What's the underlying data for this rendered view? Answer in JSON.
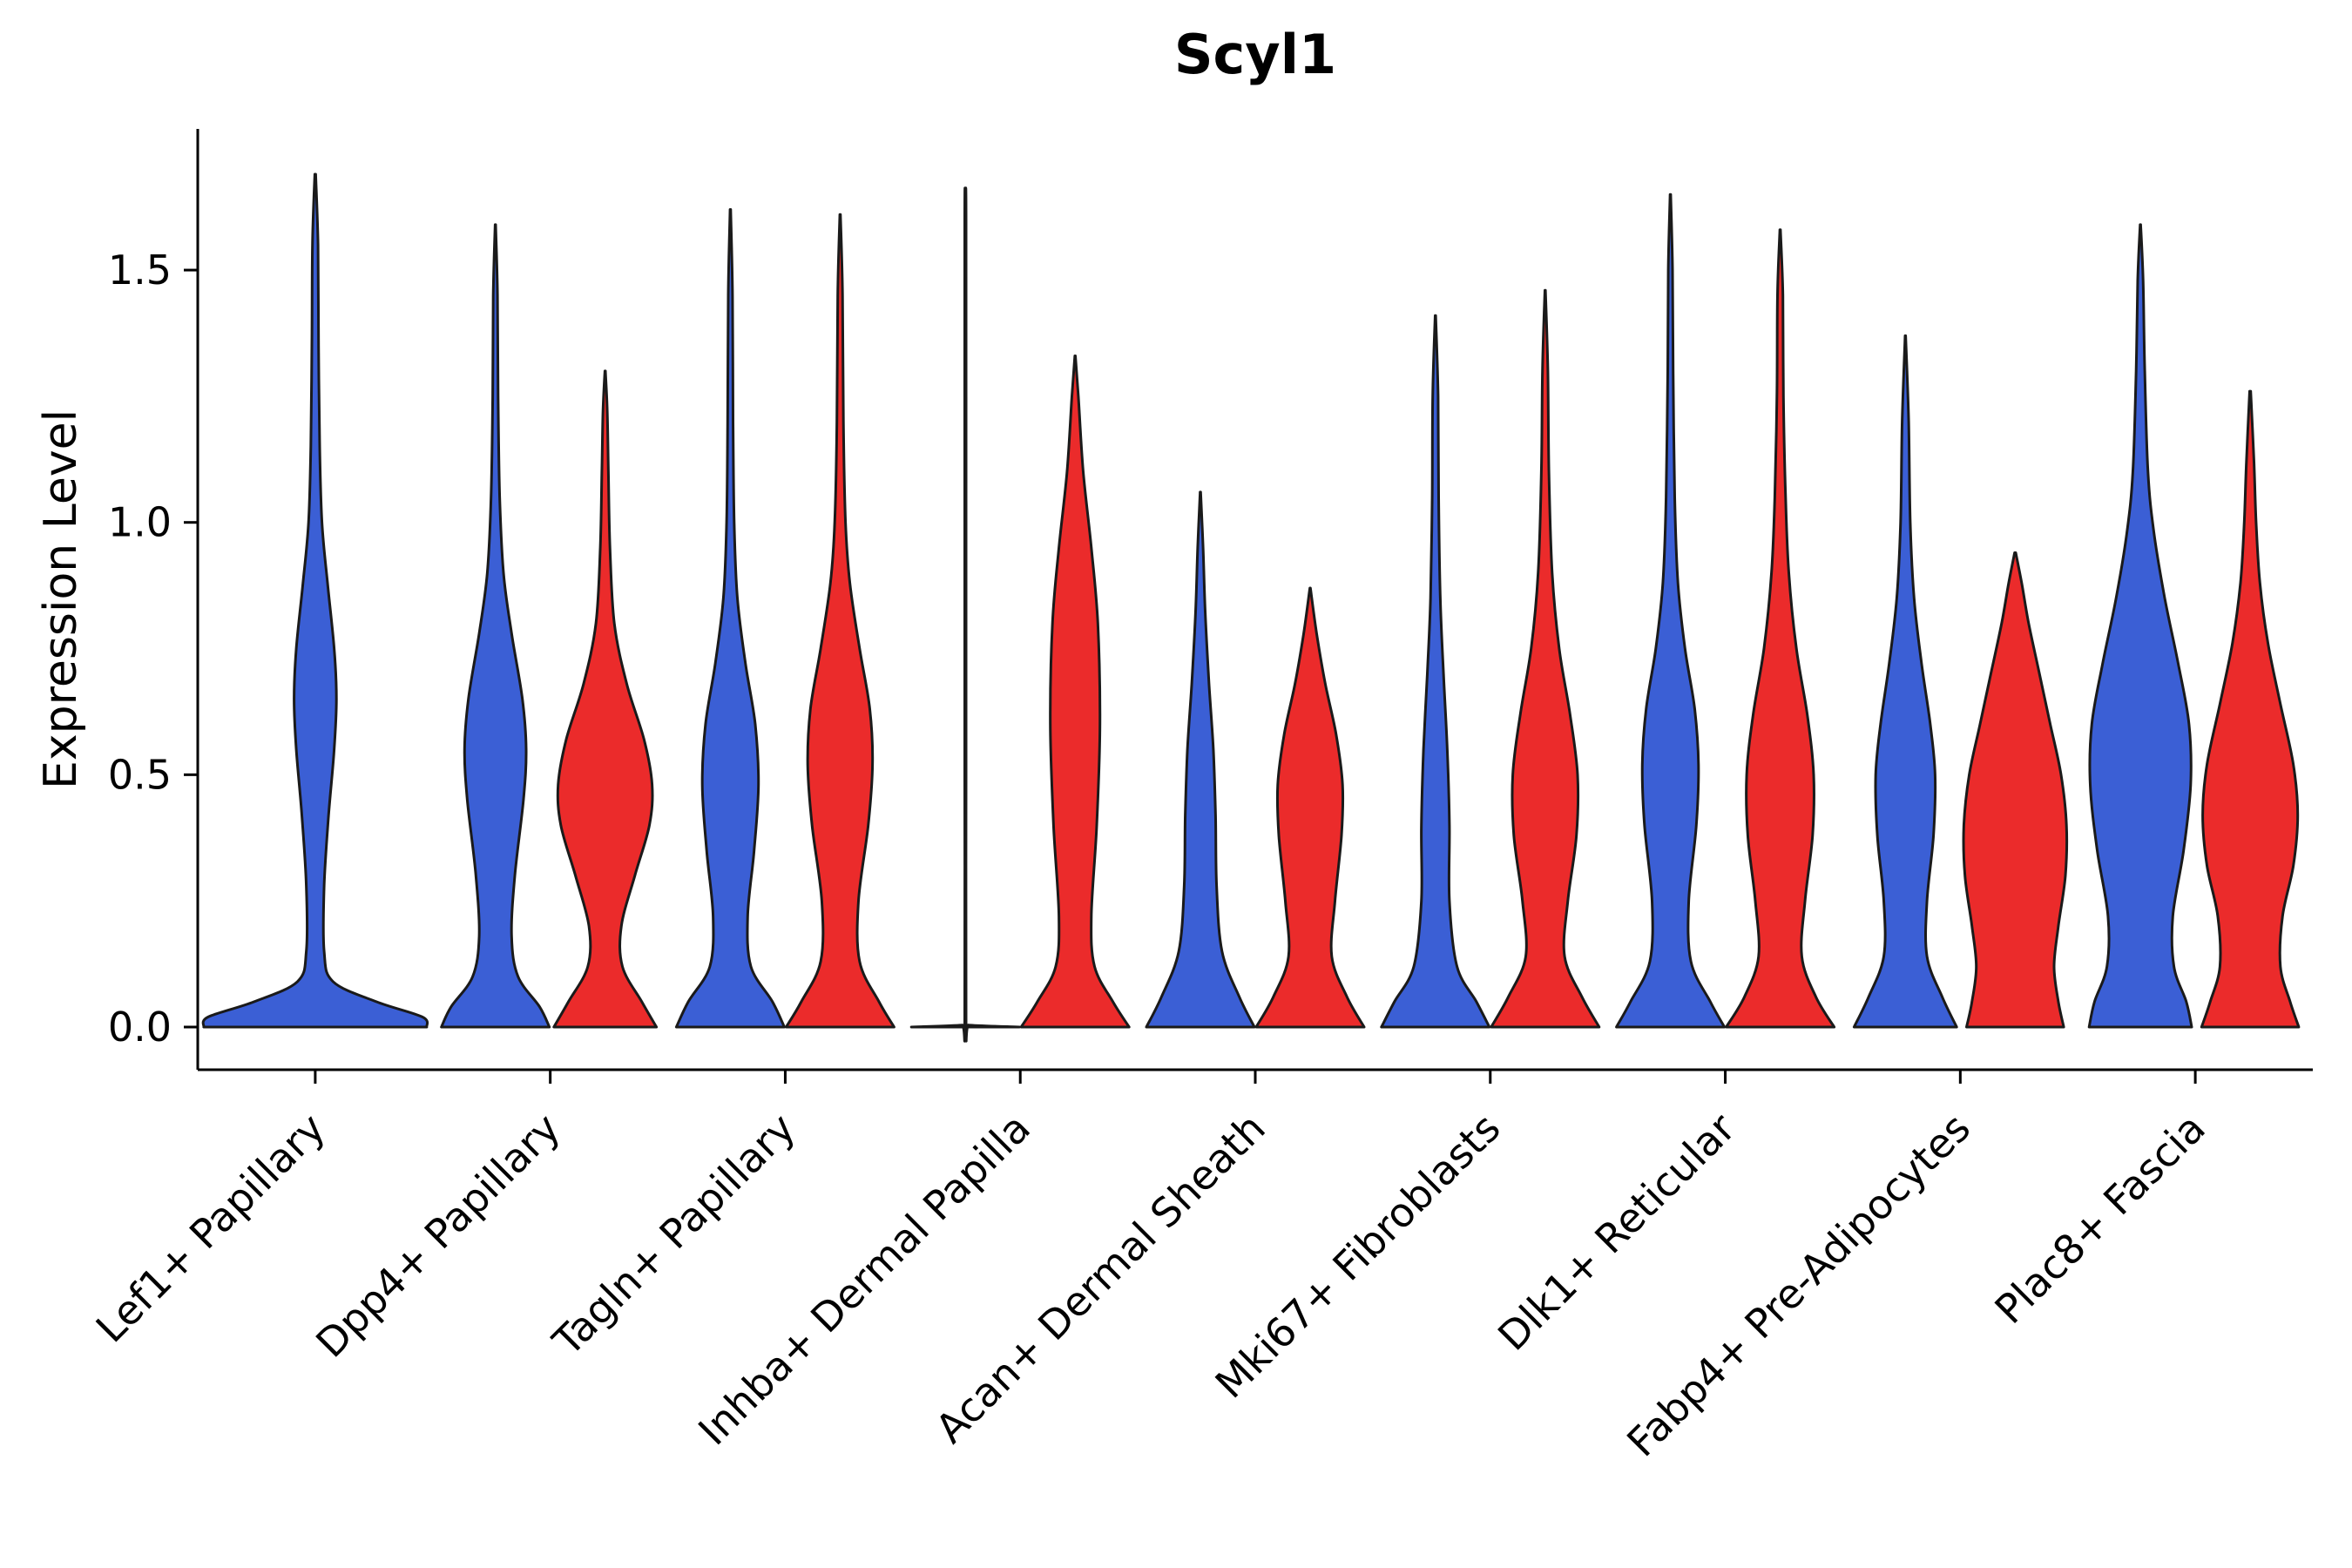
{
  "chart_data": {
    "type": "violin",
    "title": "Scyl1",
    "ylabel": "Expression Level",
    "xlabel": "",
    "ylim": [
      -0.085,
      1.78
    ],
    "ytick_labels": [
      "0.0",
      "0.5",
      "1.0",
      "1.5"
    ],
    "ytick_values": [
      0.0,
      0.5,
      1.0,
      1.5
    ],
    "x_tick_label_rotation_deg": 45,
    "legend": "none",
    "grid": false,
    "categories": [
      "Lef1+ Papillary",
      "Dpp4+ Papillary",
      "Tagln+ Papillary",
      "Inhba+ Dermal Papilla",
      "Acan+ Dermal Sheath",
      "Mki67+ Fibroblasts",
      "Dlk1+ Reticular",
      "Fabp4+ Pre-Adipocytes",
      "Plac8+ Fascia"
    ],
    "colors": {
      "blue": "#3B5FD5",
      "red": "#EB2B2B",
      "outline": "#1a1a1a",
      "axis": "#000000"
    },
    "violins": [
      {
        "category_index": 0,
        "category": "Lef1+ Papillary",
        "group": "blue",
        "side": "center",
        "max_expression": 1.69,
        "profile": [
          [
            0,
            1.0
          ],
          [
            0.02,
            0.96
          ],
          [
            0.05,
            0.55
          ],
          [
            0.09,
            0.16
          ],
          [
            0.15,
            0.08
          ],
          [
            0.28,
            0.08
          ],
          [
            0.42,
            0.12
          ],
          [
            0.55,
            0.17
          ],
          [
            0.65,
            0.19
          ],
          [
            0.75,
            0.17
          ],
          [
            0.88,
            0.11
          ],
          [
            1.0,
            0.06
          ],
          [
            1.15,
            0.04
          ],
          [
            1.35,
            0.03
          ],
          [
            1.55,
            0.025
          ],
          [
            1.69,
            0.004
          ]
        ]
      },
      {
        "category_index": 1,
        "category": "Dpp4+ Papillary",
        "group": "blue",
        "side": "left",
        "max_expression": 1.59,
        "profile": [
          [
            0,
            1.0
          ],
          [
            0.04,
            0.82
          ],
          [
            0.1,
            0.42
          ],
          [
            0.18,
            0.3
          ],
          [
            0.3,
            0.36
          ],
          [
            0.45,
            0.52
          ],
          [
            0.55,
            0.57
          ],
          [
            0.65,
            0.5
          ],
          [
            0.78,
            0.3
          ],
          [
            0.9,
            0.15
          ],
          [
            1.05,
            0.08
          ],
          [
            1.25,
            0.05
          ],
          [
            1.45,
            0.04
          ],
          [
            1.59,
            0.005
          ]
        ]
      },
      {
        "category_index": 1,
        "category": "Dpp4+ Papillary",
        "group": "red",
        "side": "right",
        "max_expression": 1.3,
        "profile": [
          [
            0,
            0.95
          ],
          [
            0.05,
            0.68
          ],
          [
            0.12,
            0.32
          ],
          [
            0.2,
            0.3
          ],
          [
            0.3,
            0.55
          ],
          [
            0.4,
            0.82
          ],
          [
            0.48,
            0.87
          ],
          [
            0.57,
            0.72
          ],
          [
            0.68,
            0.4
          ],
          [
            0.8,
            0.17
          ],
          [
            0.95,
            0.09
          ],
          [
            1.1,
            0.06
          ],
          [
            1.22,
            0.04
          ],
          [
            1.3,
            0.005
          ]
        ]
      },
      {
        "category_index": 2,
        "category": "Tagln+ Papillary",
        "group": "blue",
        "side": "left",
        "max_expression": 1.62,
        "profile": [
          [
            0,
            1.0
          ],
          [
            0.05,
            0.78
          ],
          [
            0.12,
            0.38
          ],
          [
            0.22,
            0.32
          ],
          [
            0.35,
            0.44
          ],
          [
            0.48,
            0.52
          ],
          [
            0.6,
            0.46
          ],
          [
            0.72,
            0.28
          ],
          [
            0.85,
            0.13
          ],
          [
            1.0,
            0.07
          ],
          [
            1.2,
            0.05
          ],
          [
            1.45,
            0.04
          ],
          [
            1.62,
            0.005
          ]
        ]
      },
      {
        "category_index": 2,
        "category": "Tagln+ Papillary",
        "group": "red",
        "side": "right",
        "max_expression": 1.61,
        "profile": [
          [
            0,
            1.0
          ],
          [
            0.05,
            0.72
          ],
          [
            0.13,
            0.36
          ],
          [
            0.25,
            0.34
          ],
          [
            0.4,
            0.52
          ],
          [
            0.52,
            0.6
          ],
          [
            0.63,
            0.55
          ],
          [
            0.75,
            0.36
          ],
          [
            0.88,
            0.18
          ],
          [
            1.0,
            0.1
          ],
          [
            1.2,
            0.06
          ],
          [
            1.45,
            0.045
          ],
          [
            1.61,
            0.005
          ]
        ]
      },
      {
        "category_index": 3,
        "category": "Inhba+ Dermal Papilla",
        "group": "blue",
        "side": "left",
        "max_expression": 1.65,
        "profile": [
          [
            0,
            1.0
          ],
          [
            0.004,
            0.06
          ],
          [
            0.01,
            0.012
          ],
          [
            0.5,
            0.012
          ],
          [
            1.0,
            0.012
          ],
          [
            1.6,
            0.012
          ],
          [
            1.65,
            0.003
          ]
        ]
      },
      {
        "category_index": 3,
        "category": "Inhba+ Dermal Papilla",
        "group": "red",
        "side": "right",
        "max_expression": 1.33,
        "profile": [
          [
            0,
            1.0
          ],
          [
            0.05,
            0.7
          ],
          [
            0.12,
            0.36
          ],
          [
            0.22,
            0.3
          ],
          [
            0.4,
            0.4
          ],
          [
            0.6,
            0.46
          ],
          [
            0.8,
            0.42
          ],
          [
            0.95,
            0.3
          ],
          [
            1.1,
            0.15
          ],
          [
            1.25,
            0.06
          ],
          [
            1.33,
            0.005
          ]
        ]
      },
      {
        "category_index": 4,
        "category": "Acan+ Dermal Sheath",
        "group": "blue",
        "side": "left",
        "max_expression": 1.06,
        "profile": [
          [
            0,
            1.0
          ],
          [
            0.06,
            0.72
          ],
          [
            0.15,
            0.4
          ],
          [
            0.28,
            0.3
          ],
          [
            0.42,
            0.28
          ],
          [
            0.55,
            0.24
          ],
          [
            0.68,
            0.16
          ],
          [
            0.82,
            0.09
          ],
          [
            0.95,
            0.05
          ],
          [
            1.06,
            0.005
          ]
        ]
      },
      {
        "category_index": 4,
        "category": "Acan+ Dermal Sheath",
        "group": "red",
        "side": "right",
        "max_expression": 0.87,
        "profile": [
          [
            0,
            1.0
          ],
          [
            0.06,
            0.68
          ],
          [
            0.14,
            0.4
          ],
          [
            0.25,
            0.46
          ],
          [
            0.38,
            0.58
          ],
          [
            0.48,
            0.6
          ],
          [
            0.58,
            0.48
          ],
          [
            0.68,
            0.28
          ],
          [
            0.78,
            0.12
          ],
          [
            0.87,
            0.005
          ]
        ]
      },
      {
        "category_index": 5,
        "category": "Mki67+ Fibroblasts",
        "group": "blue",
        "side": "left",
        "max_expression": 1.41,
        "profile": [
          [
            0,
            1.0
          ],
          [
            0.05,
            0.76
          ],
          [
            0.12,
            0.4
          ],
          [
            0.25,
            0.26
          ],
          [
            0.4,
            0.26
          ],
          [
            0.55,
            0.22
          ],
          [
            0.7,
            0.15
          ],
          [
            0.85,
            0.09
          ],
          [
            1.05,
            0.06
          ],
          [
            1.25,
            0.05
          ],
          [
            1.41,
            0.005
          ]
        ]
      },
      {
        "category_index": 5,
        "category": "Mki67+ Fibroblasts",
        "group": "red",
        "side": "right",
        "max_expression": 1.46,
        "profile": [
          [
            0,
            1.0
          ],
          [
            0.06,
            0.68
          ],
          [
            0.14,
            0.36
          ],
          [
            0.25,
            0.42
          ],
          [
            0.38,
            0.58
          ],
          [
            0.5,
            0.6
          ],
          [
            0.62,
            0.46
          ],
          [
            0.75,
            0.26
          ],
          [
            0.9,
            0.13
          ],
          [
            1.1,
            0.07
          ],
          [
            1.3,
            0.05
          ],
          [
            1.46,
            0.005
          ]
        ]
      },
      {
        "category_index": 6,
        "category": "Dlk1+ Reticular",
        "group": "blue",
        "side": "left",
        "max_expression": 1.65,
        "profile": [
          [
            0,
            1.0
          ],
          [
            0.05,
            0.74
          ],
          [
            0.13,
            0.38
          ],
          [
            0.25,
            0.34
          ],
          [
            0.4,
            0.48
          ],
          [
            0.52,
            0.52
          ],
          [
            0.63,
            0.45
          ],
          [
            0.75,
            0.27
          ],
          [
            0.88,
            0.14
          ],
          [
            1.05,
            0.08
          ],
          [
            1.3,
            0.05
          ],
          [
            1.5,
            0.04
          ],
          [
            1.65,
            0.005
          ]
        ]
      },
      {
        "category_index": 6,
        "category": "Dlk1+ Reticular",
        "group": "red",
        "side": "right",
        "max_expression": 1.58,
        "profile": [
          [
            0,
            1.0
          ],
          [
            0.06,
            0.66
          ],
          [
            0.14,
            0.4
          ],
          [
            0.25,
            0.46
          ],
          [
            0.38,
            0.6
          ],
          [
            0.5,
            0.62
          ],
          [
            0.62,
            0.5
          ],
          [
            0.75,
            0.3
          ],
          [
            0.9,
            0.16
          ],
          [
            1.05,
            0.1
          ],
          [
            1.25,
            0.06
          ],
          [
            1.45,
            0.05
          ],
          [
            1.58,
            0.005
          ]
        ]
      },
      {
        "category_index": 7,
        "category": "Fabp4+ Pre-Adipocytes",
        "group": "blue",
        "side": "left",
        "max_expression": 1.37,
        "profile": [
          [
            0,
            0.95
          ],
          [
            0.06,
            0.68
          ],
          [
            0.14,
            0.4
          ],
          [
            0.25,
            0.4
          ],
          [
            0.38,
            0.52
          ],
          [
            0.5,
            0.55
          ],
          [
            0.6,
            0.46
          ],
          [
            0.72,
            0.3
          ],
          [
            0.85,
            0.16
          ],
          [
            1.0,
            0.09
          ],
          [
            1.2,
            0.06
          ],
          [
            1.37,
            0.005
          ]
        ]
      },
      {
        "category_index": 7,
        "category": "Fabp4+ Pre-Adipocytes",
        "group": "red",
        "side": "right",
        "max_expression": 0.94,
        "profile": [
          [
            0,
            0.9
          ],
          [
            0.05,
            0.8
          ],
          [
            0.12,
            0.72
          ],
          [
            0.2,
            0.8
          ],
          [
            0.3,
            0.93
          ],
          [
            0.4,
            0.95
          ],
          [
            0.5,
            0.85
          ],
          [
            0.6,
            0.65
          ],
          [
            0.7,
            0.45
          ],
          [
            0.8,
            0.25
          ],
          [
            0.88,
            0.12
          ],
          [
            0.94,
            0.01
          ]
        ]
      },
      {
        "category_index": 8,
        "category": "Plac8+ Fascia",
        "group": "blue",
        "side": "left",
        "max_expression": 1.59,
        "profile": [
          [
            0,
            0.95
          ],
          [
            0.05,
            0.85
          ],
          [
            0.12,
            0.62
          ],
          [
            0.22,
            0.6
          ],
          [
            0.35,
            0.8
          ],
          [
            0.48,
            0.93
          ],
          [
            0.6,
            0.9
          ],
          [
            0.72,
            0.7
          ],
          [
            0.85,
            0.45
          ],
          [
            0.98,
            0.25
          ],
          [
            1.1,
            0.14
          ],
          [
            1.3,
            0.08
          ],
          [
            1.48,
            0.05
          ],
          [
            1.59,
            0.005
          ]
        ]
      },
      {
        "category_index": 8,
        "category": "Plac8+ Fascia",
        "group": "red",
        "side": "right",
        "max_expression": 1.26,
        "profile": [
          [
            0,
            0.9
          ],
          [
            0.05,
            0.74
          ],
          [
            0.12,
            0.56
          ],
          [
            0.22,
            0.6
          ],
          [
            0.32,
            0.8
          ],
          [
            0.42,
            0.88
          ],
          [
            0.52,
            0.8
          ],
          [
            0.64,
            0.56
          ],
          [
            0.76,
            0.33
          ],
          [
            0.88,
            0.18
          ],
          [
            1.0,
            0.11
          ],
          [
            1.12,
            0.07
          ],
          [
            1.26,
            0.01
          ]
        ]
      }
    ]
  }
}
